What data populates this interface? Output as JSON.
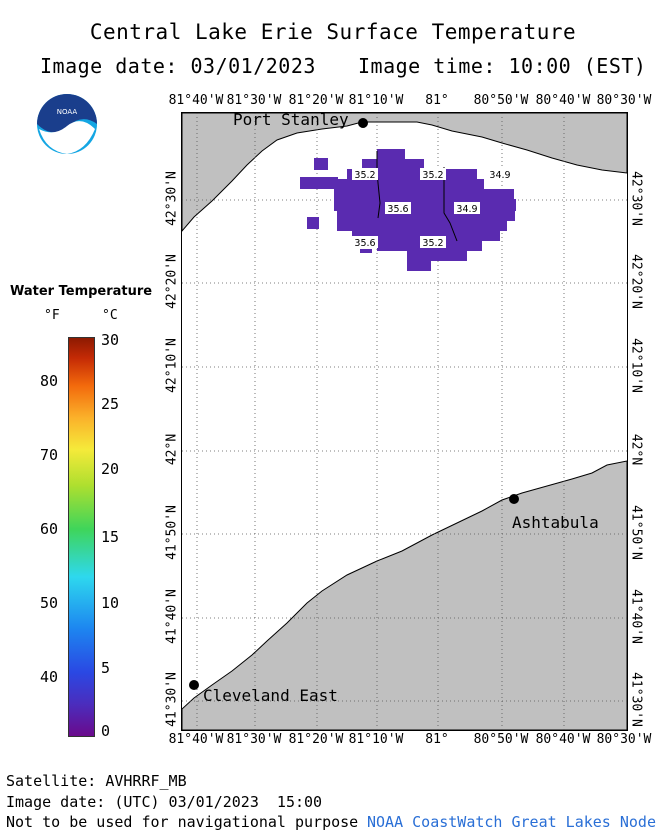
{
  "title": "Central Lake Erie Surface Temperature",
  "image_date": "Image date: 03/01/2023",
  "image_time": "Image time: 10:00 (EST)",
  "lon_labels": [
    "81°40'W",
    "81°30'W",
    "81°20'W",
    "81°10'W",
    "81°",
    "80°50'W",
    "80°40'W",
    "80°30'W"
  ],
  "lat_labels": [
    "42°30'N",
    "42°20'N",
    "42°10'N",
    "42°N",
    "41°50'N",
    "41°40'N",
    "41°30'N"
  ],
  "places": [
    "Port Stanley",
    "Ashtabula",
    "Cleveland East"
  ],
  "sst_labels": [
    "35.2",
    "35.2",
    "34.9",
    "35.6",
    "34.9",
    "35.6",
    "35.2"
  ],
  "legend": {
    "title": "Water Temperature",
    "unit_f": "°F",
    "unit_c": "°C",
    "f_ticks": [
      "80",
      "70",
      "60",
      "50",
      "40"
    ],
    "c_ticks": [
      "30",
      "25",
      "20",
      "15",
      "10",
      "5",
      "0"
    ]
  },
  "logo_text": "NOAA",
  "footer": {
    "satellite": "Satellite: AVHRRF_MB",
    "utc_date": "Image date: (UTC) 03/01/2023  15:00",
    "disclaimer": "Not to be used for navigational purpose",
    "credit": "NOAA CoastWatch Great Lakes Node"
  },
  "colors": {
    "land": "#c0c0c0",
    "water": "#ffffff",
    "sst_purple": "#5a2bb0",
    "credit_blue": "#2a6fd6"
  }
}
